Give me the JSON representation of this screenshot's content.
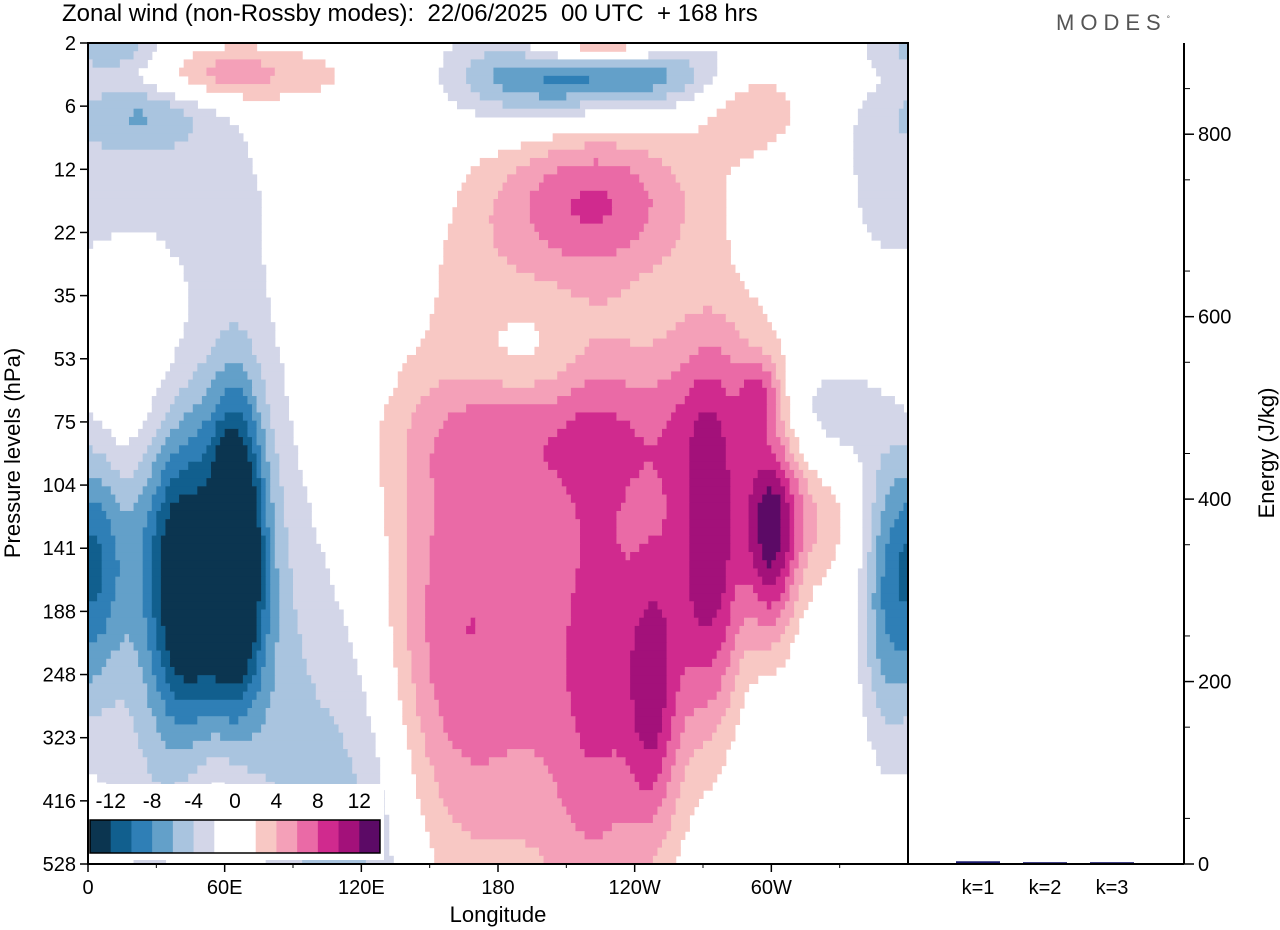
{
  "title": "Zonal wind (non-Rossby modes):  22/06/2025  00 UTC  + 168 hrs",
  "brand": "MODES",
  "brand_mark": "°",
  "colors": {
    "levels": [
      "#0b3550",
      "#115f8e",
      "#2f7fb6",
      "#63a0c9",
      "#a9c4df",
      "#d3d6e8",
      "#ffffff",
      "#ffffff",
      "#f8c8c4",
      "#f4a0b8",
      "#ea6aa6",
      "#d02a8e",
      "#a3117a",
      "#5c0a66"
    ],
    "frame": "#000000"
  },
  "chart_data": [
    {
      "type": "heatmap",
      "title": "Zonal wind (non-Rossby modes):  22/06/2025  00 UTC  + 168 hrs",
      "xlabel": "Longitude",
      "ylabel": "Pressure levels (hPa)",
      "x_ticks": [
        "0",
        "60E",
        "120E",
        "180",
        "120W",
        "60W"
      ],
      "x_tick_values": [
        0,
        60,
        120,
        180,
        240,
        300
      ],
      "xlim": [
        0,
        360
      ],
      "y_ticks": [
        "2",
        "6",
        "12",
        "22",
        "35",
        "53",
        "75",
        "104",
        "141",
        "188",
        "248",
        "323",
        "416",
        "528"
      ],
      "y_scale": "model levels (log-pressure), increasing downward",
      "colorbar_labels": [
        "-12",
        "-8",
        "-4",
        "0",
        "4",
        "8",
        "12"
      ],
      "colorbar_bounds": [
        -14,
        -12,
        -10,
        -8,
        -6,
        -4,
        -2,
        0,
        2,
        4,
        6,
        8,
        10,
        12,
        14
      ],
      "features": [
        {
          "x": 65,
          "y": 141,
          "value": -13,
          "sx": 8,
          "sy": 1.6
        },
        {
          "x": 43,
          "y": 175,
          "value": -8,
          "sx": 10,
          "sy": 1.4
        },
        {
          "x": 58,
          "y": 170,
          "value": -7,
          "sx": 20,
          "sy": 3.0
        },
        {
          "x": 4,
          "y": 150,
          "value": -6,
          "sx": 8,
          "sy": 1.5
        },
        {
          "x": 18,
          "y": 110,
          "value": -5,
          "sx": 22,
          "sy": 1.5
        },
        {
          "x": 42,
          "y": 260,
          "value": -4,
          "sx": 25,
          "sy": 3.0
        },
        {
          "x": 120,
          "y": 300,
          "value": -3,
          "sx": 18,
          "sy": 4.0
        },
        {
          "x": 92,
          "y": 220,
          "value": -3,
          "sx": 22,
          "sy": 3.0
        },
        {
          "x": 320,
          "y": 75,
          "value": -6,
          "sx": 18,
          "sy": 0.8
        },
        {
          "x": 350,
          "y": 180,
          "value": -6,
          "sx": 8,
          "sy": 1.6
        },
        {
          "x": 228,
          "y": 3,
          "value": -10,
          "sx": 45,
          "sy": 0.5
        },
        {
          "x": 180,
          "y": 5,
          "value": -3,
          "sx": 30,
          "sy": 0.6
        },
        {
          "x": 25,
          "y": 5.5,
          "value": -6,
          "sx": 22,
          "sy": 0.5
        },
        {
          "x": 12,
          "y": 2.3,
          "value": -5,
          "sx": 18,
          "sy": 0.3
        },
        {
          "x": 190,
          "y": 53,
          "value": -2,
          "sx": 18,
          "sy": 0.6
        },
        {
          "x": 140,
          "y": 12,
          "value": -2,
          "sx": 30,
          "sy": 1.0
        },
        {
          "x": 40,
          "y": 14,
          "value": -2,
          "sx": 35,
          "sy": 1.2
        },
        {
          "x": 350,
          "y": 13,
          "value": -2,
          "sx": 20,
          "sy": 1.5
        },
        {
          "x": 280,
          "y": 370,
          "value": -2,
          "sx": 20,
          "sy": 2.0
        },
        {
          "x": 115,
          "y": 570,
          "value": -2,
          "sx": 25,
          "sy": 2.5
        },
        {
          "x": 155,
          "y": 105,
          "value": -1.5,
          "sx": 20,
          "sy": 2.0
        },
        {
          "x": 160,
          "y": 190,
          "value": 6,
          "sx": 22,
          "sy": 3.0
        },
        {
          "x": 120,
          "y": 165,
          "value": 3,
          "sx": 40,
          "sy": 2.4
        },
        {
          "x": 200,
          "y": 200,
          "value": 4,
          "sx": 25,
          "sy": 3.0
        },
        {
          "x": 225,
          "y": 190,
          "value": 5,
          "sx": 14,
          "sy": 3.0
        },
        {
          "x": 248,
          "y": 280,
          "value": 6,
          "sx": 8,
          "sy": 1.5
        },
        {
          "x": 262,
          "y": 160,
          "value": 6,
          "sx": 18,
          "sy": 2.5
        },
        {
          "x": 275,
          "y": 150,
          "value": 7,
          "sx": 10,
          "sy": 2.0
        },
        {
          "x": 300,
          "y": 135,
          "value": 10,
          "sx": 8,
          "sy": 1.2
        },
        {
          "x": 315,
          "y": 110,
          "value": 5,
          "sx": 18,
          "sy": 1.0
        },
        {
          "x": 205,
          "y": 80,
          "value": 4,
          "sx": 50,
          "sy": 0.8
        },
        {
          "x": 290,
          "y": 60,
          "value": 3,
          "sx": 28,
          "sy": 1.0
        },
        {
          "x": 295,
          "y": 65,
          "value": 5,
          "sx": 6,
          "sy": 0.4
        },
        {
          "x": 225,
          "y": 16,
          "value": 5,
          "sx": 30,
          "sy": 0.8
        },
        {
          "x": 200,
          "y": 18,
          "value": 3,
          "sx": 45,
          "sy": 1.2
        },
        {
          "x": 225,
          "y": 2.1,
          "value": 11,
          "sx": 25,
          "sy": 0.25
        },
        {
          "x": 50,
          "y": 3.5,
          "value": 7,
          "sx": 35,
          "sy": 0.35
        },
        {
          "x": 140,
          "y": 5,
          "value": 3,
          "sx": 25,
          "sy": 0.8
        },
        {
          "x": 290,
          "y": 5,
          "value": 5,
          "sx": 18,
          "sy": 0.6
        },
        {
          "x": 12,
          "y": 85,
          "value": 4,
          "sx": 14,
          "sy": 1.2
        },
        {
          "x": 55,
          "y": 440,
          "value": 4,
          "sx": 14,
          "sy": 2.0
        },
        {
          "x": 60,
          "y": 540,
          "value": 3,
          "sx": 14,
          "sy": 2.0
        },
        {
          "x": 30,
          "y": 55,
          "value": 2,
          "sx": 22,
          "sy": 1.2
        },
        {
          "x": 55,
          "y": 115,
          "value": 2,
          "sx": 10,
          "sy": 0.6
        },
        {
          "x": 225,
          "y": 420,
          "value": 2,
          "sx": 25,
          "sy": 2.0
        }
      ]
    },
    {
      "type": "bar",
      "title": "",
      "ylabel": "Energy (J/kg)",
      "categories": [
        "k=1",
        "k=2",
        "k=3"
      ],
      "values": [
        3,
        2,
        2
      ],
      "ylim": [
        0,
        900
      ],
      "y_ticks": [
        "0",
        "200",
        "400",
        "600",
        "800"
      ],
      "y_tick_values": [
        0,
        200,
        400,
        600,
        800
      ]
    }
  ]
}
